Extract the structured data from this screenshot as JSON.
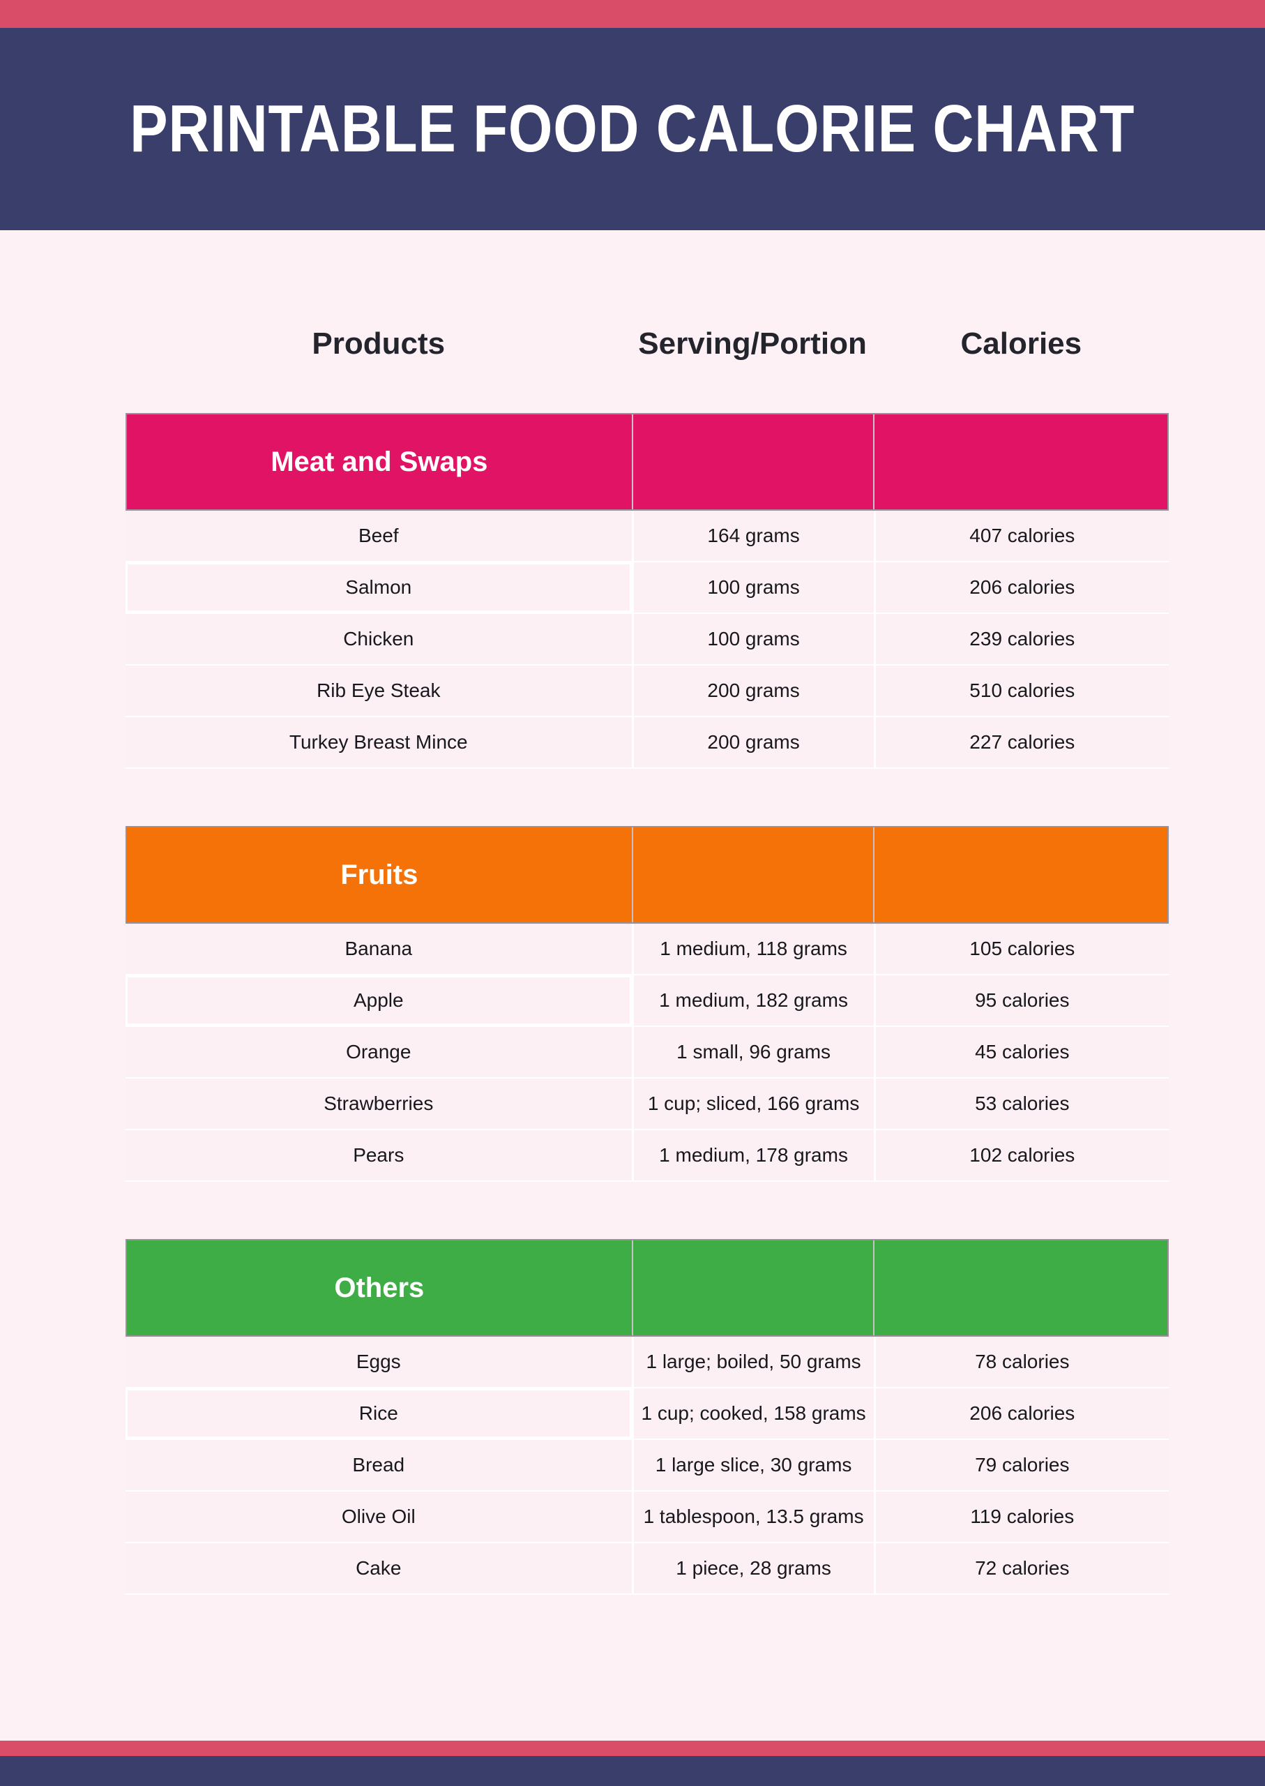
{
  "banner": {
    "title": "PRINTABLE FOOD CALORIE CHART"
  },
  "columns": {
    "products": "Products",
    "serving": "Serving/Portion",
    "calories": "Calories"
  },
  "colors": {
    "accent_stripe": "#d94d68",
    "banner_bg": "#3a3e6b",
    "page_bg": "#fdf1f6",
    "row_bg": "#fcf0f4",
    "meat_header": "#e11365",
    "fruits_header": "#f57209",
    "others_header": "#3fad45"
  },
  "sections": [
    {
      "label": "Meat and Swaps",
      "rows": [
        {
          "product": "Beef",
          "serving": "164 grams",
          "calories": "407 calories"
        },
        {
          "product": "Salmon",
          "serving": "100 grams",
          "calories": "206 calories"
        },
        {
          "product": "Chicken",
          "serving": "100 grams",
          "calories": "239 calories"
        },
        {
          "product": "Rib Eye Steak",
          "serving": "200 grams",
          "calories": "510 calories"
        },
        {
          "product": "Turkey Breast Mince",
          "serving": "200 grams",
          "calories": "227 calories"
        }
      ]
    },
    {
      "label": "Fruits",
      "rows": [
        {
          "product": "Banana",
          "serving": "1 medium, 118 grams",
          "calories": "105 calories"
        },
        {
          "product": "Apple",
          "serving": "1 medium, 182 grams",
          "calories": "95 calories"
        },
        {
          "product": "Orange",
          "serving": "1 small, 96 grams",
          "calories": "45 calories"
        },
        {
          "product": "Strawberries",
          "serving": "1 cup; sliced, 166 grams",
          "calories": "53 calories"
        },
        {
          "product": "Pears",
          "serving": "1 medium, 178 grams",
          "calories": "102 calories"
        }
      ]
    },
    {
      "label": "Others",
      "rows": [
        {
          "product": "Eggs",
          "serving": "1 large; boiled, 50 grams",
          "calories": "78 calories"
        },
        {
          "product": "Rice",
          "serving": "1 cup; cooked, 158 grams",
          "calories": "206 calories"
        },
        {
          "product": "Bread",
          "serving": "1 large slice, 30 grams",
          "calories": "79 calories"
        },
        {
          "product": "Olive Oil",
          "serving": "1 tablespoon, 13.5 grams",
          "calories": "119 calories"
        },
        {
          "product": "Cake",
          "serving": "1 piece, 28 grams",
          "calories": "72 calories"
        }
      ]
    }
  ]
}
